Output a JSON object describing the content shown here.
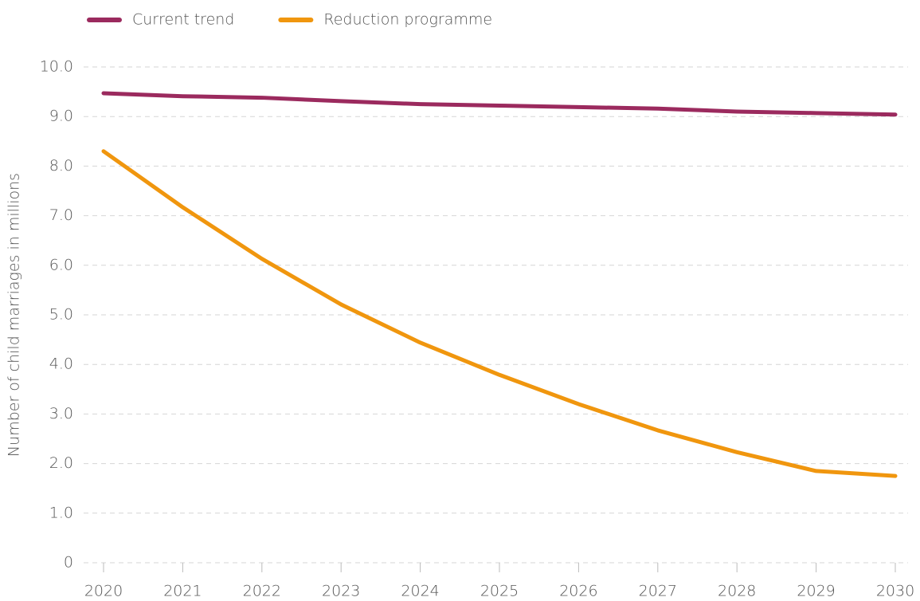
{
  "chart_data": {
    "type": "line",
    "y_label": "Number of child marriages in millions",
    "x": [
      2020,
      2021,
      2022,
      2023,
      2024,
      2025,
      2026,
      2027,
      2028,
      2029,
      2030
    ],
    "xlim": [
      2020,
      2030
    ],
    "xticks": [
      2020,
      2021,
      2022,
      2023,
      2024,
      2025,
      2026,
      2027,
      2028,
      2029,
      2030
    ],
    "series": [
      {
        "name": "Current trend",
        "color": "#9b2a5e",
        "values": [
          9.47,
          9.41,
          9.38,
          9.31,
          9.25,
          9.22,
          9.19,
          9.16,
          9.1,
          9.07,
          9.04
        ]
      },
      {
        "name": "Reduction programme",
        "color": "#f0960e",
        "values": [
          8.3,
          7.17,
          6.13,
          5.21,
          4.44,
          3.79,
          3.2,
          2.67,
          2.23,
          1.85,
          1.75
        ]
      }
    ],
    "ylim": [
      0,
      10
    ],
    "yticks": [
      0,
      {
        "value": 1,
        "label": "1.0"
      },
      {
        "value": 2,
        "label": "2.0"
      },
      {
        "value": 3,
        "label": "3.0"
      },
      {
        "value": 4,
        "label": "4.0"
      },
      {
        "value": 5,
        "label": "5.0"
      },
      {
        "value": 6,
        "label": "6.0"
      },
      {
        "value": 7,
        "label": "7.0"
      },
      {
        "value": 8,
        "label": "8.0"
      },
      {
        "value": 9,
        "label": "9.0"
      },
      {
        "value": 10,
        "label": "10.0"
      }
    ],
    "grid": true,
    "legend": "top-left"
  }
}
